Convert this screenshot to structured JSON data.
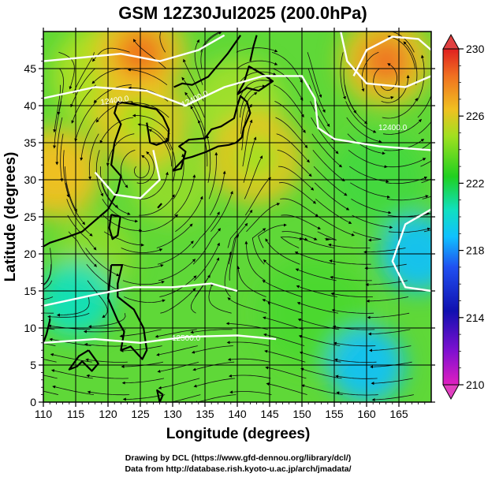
{
  "title": "GSM 12Z30Jul2025 (200.0hPa)",
  "xaxis": {
    "label": "Longitude (degrees)",
    "range": [
      110,
      170
    ],
    "ticks": [
      "110",
      "115",
      "120",
      "125",
      "130",
      "135",
      "140",
      "145",
      "150",
      "155",
      "160",
      "165"
    ]
  },
  "yaxis": {
    "label": "Latitude  (degrees)",
    "range": [
      0,
      50
    ],
    "ticks": [
      "0",
      "5",
      "10",
      "15",
      "20",
      "25",
      "30",
      "35",
      "40",
      "45"
    ]
  },
  "colorbar": {
    "range": [
      210,
      230
    ],
    "ticks": [
      "210",
      "214",
      "218",
      "222",
      "226",
      "230"
    ]
  },
  "contour_labels": [
    "12400.0",
    "12400.0",
    "12400.0",
    "12500.0"
  ],
  "credits": {
    "line1": "Drawing by DCL (https://www.gfd-dennou.org/library/dcl/)",
    "line2": "Data from http://database.rish.kyoto-u.ac.jp/arch/jmadata/"
  },
  "chart_data": {
    "type": "heatmap",
    "title": "GSM 12Z30Jul2025 (200.0hPa)",
    "xlabel": "Longitude (degrees)",
    "ylabel": "Latitude  (degrees)",
    "xlim": [
      110,
      170
    ],
    "ylim": [
      0,
      50
    ],
    "color_range": [
      210,
      230
    ],
    "grid": true,
    "hotspots": [
      {
        "lon": 125,
        "lat": 47,
        "value": 229
      },
      {
        "lon": 112,
        "lat": 31,
        "value": 228
      },
      {
        "lon": 163,
        "lat": 46,
        "value": 229
      },
      {
        "lon": 143,
        "lat": 33,
        "value": 226
      },
      {
        "lon": 125,
        "lat": 38,
        "value": 226
      }
    ],
    "coldspots": [
      {
        "lon": 168,
        "lat": 20,
        "value": 219
      },
      {
        "lon": 160,
        "lat": 5,
        "value": 220
      },
      {
        "lon": 115,
        "lat": 14,
        "value": 221
      }
    ]
  }
}
